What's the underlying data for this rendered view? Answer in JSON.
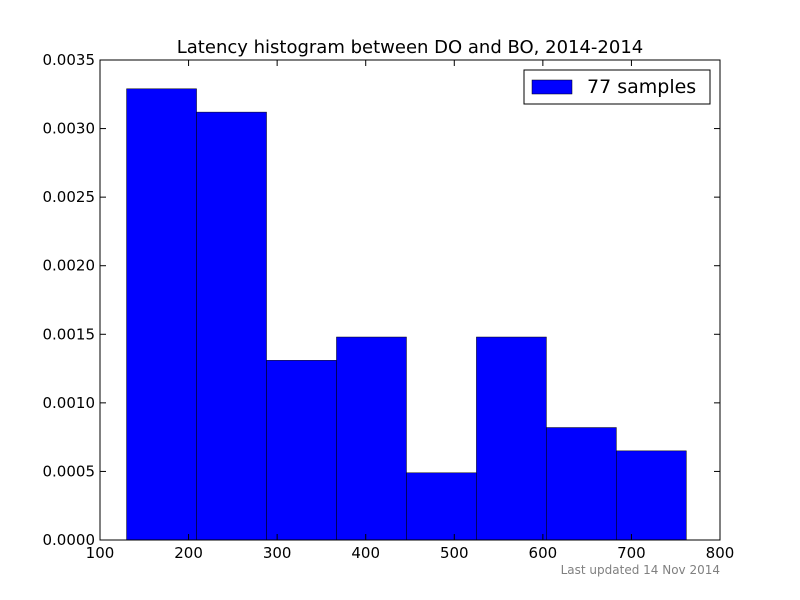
{
  "chart_data": {
    "type": "bar",
    "title": "Latency histogram between DO and BO, 2014-2014",
    "xlabel": "",
    "ylabel": "",
    "xlim": [
      100,
      800
    ],
    "ylim": [
      0,
      0.0035
    ],
    "xticks": [
      "100",
      "200",
      "300",
      "400",
      "500",
      "600",
      "700",
      "800"
    ],
    "yticks": [
      "0.0000",
      "0.0005",
      "0.0010",
      "0.0015",
      "0.0020",
      "0.0025",
      "0.0030",
      "0.0035"
    ],
    "bins": [
      {
        "start": 130,
        "end": 209,
        "value": 0.00329
      },
      {
        "start": 209,
        "end": 288,
        "value": 0.00312
      },
      {
        "start": 288,
        "end": 367,
        "value": 0.00131
      },
      {
        "start": 367,
        "end": 446,
        "value": 0.00148
      },
      {
        "start": 446,
        "end": 525,
        "value": 0.00049
      },
      {
        "start": 525,
        "end": 604,
        "value": 0.00148
      },
      {
        "start": 604,
        "end": 683,
        "value": 0.00082
      },
      {
        "start": 683,
        "end": 762,
        "value": 0.00065
      }
    ],
    "series": [
      {
        "name": "77 samples",
        "color": "#0000ff"
      }
    ],
    "legend": "top-right",
    "grid": false
  },
  "footer": "Last updated 14 Nov 2014"
}
